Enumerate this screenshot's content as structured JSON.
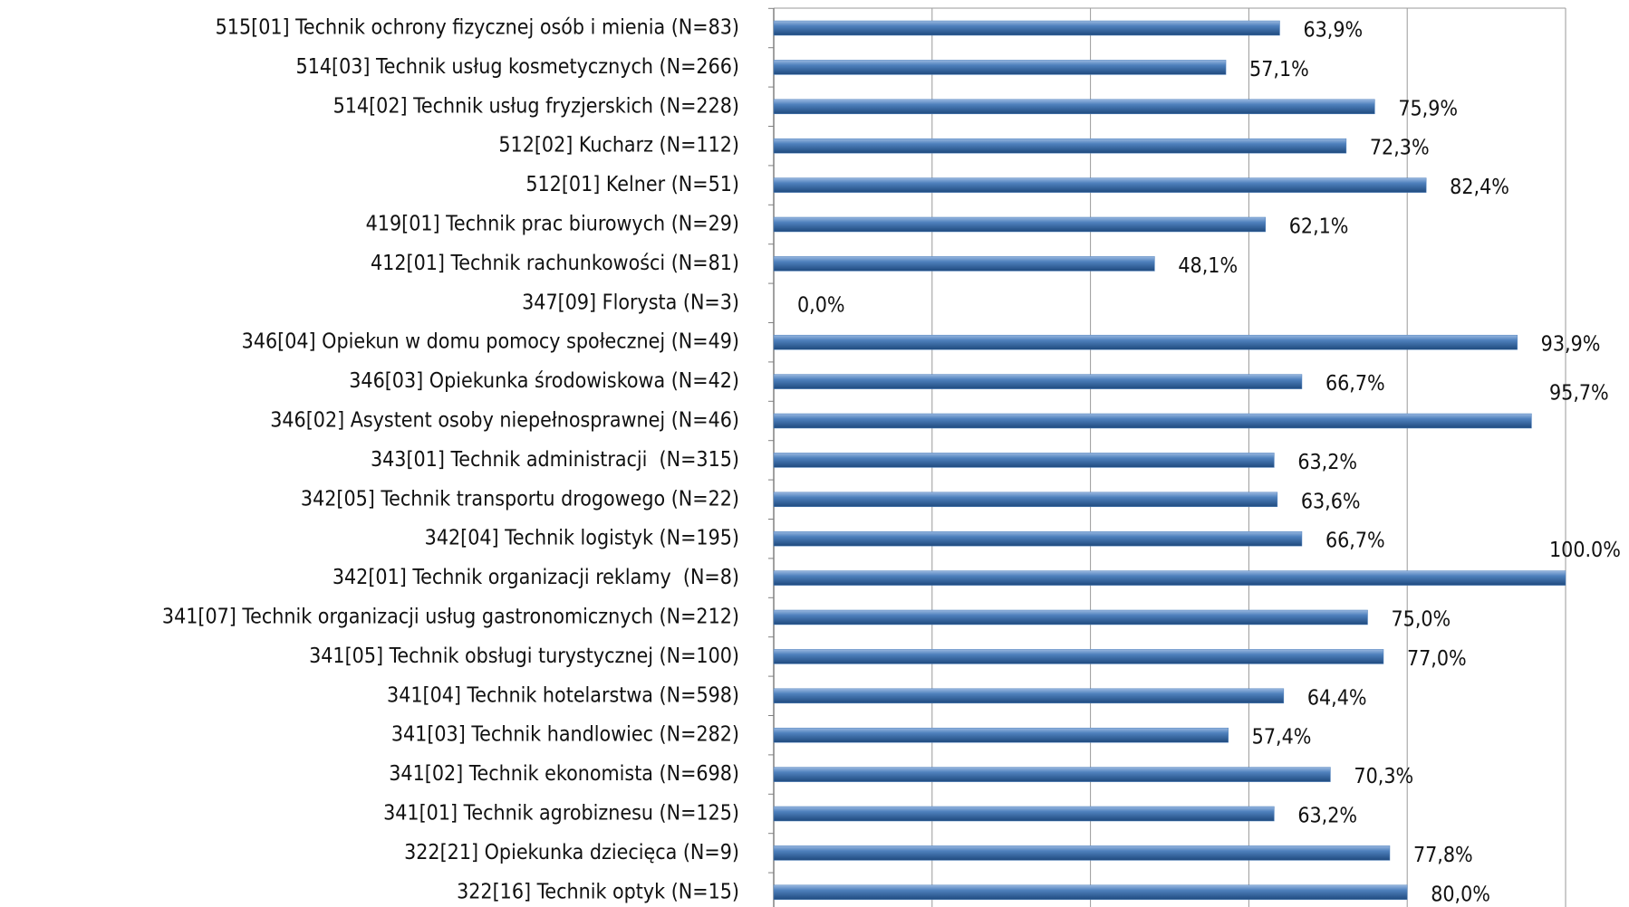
{
  "chart_data": {
    "type": "hbar",
    "categories": [
      "515[01] Technik ochrony fizycznej osób i mienia (N=83)",
      "514[03] Technik usług kosmetycznych (N=266)",
      "514[02] Technik usług fryzjerskich (N=228)",
      "512[02] Kucharz (N=112)",
      "512[01] Kelner (N=51)",
      "419[01] Technik prac biurowych (N=29)",
      "412[01] Technik rachunkowości (N=81)",
      "347[09] Florysta (N=3)",
      "346[04] Opiekun w domu pomocy społecznej (N=49)",
      "346[03] Opiekunka środowiskowa (N=42)",
      "346[02] Asystent osoby niepełnosprawnej (N=46)",
      "343[01] Technik administracji  (N=315)",
      "342[05] Technik transportu drogowego (N=22)",
      "342[04] Technik logistyk (N=195)",
      "342[01] Technik organizacji reklamy  (N=8)",
      "341[07] Technik organizacji usług gastronomicznych (N=212)",
      "341[05] Technik obsługi turystycznej (N=100)",
      "341[04] Technik hotelarstwa (N=598)",
      "341[03] Technik handlowiec (N=282)",
      "341[02] Technik ekonomista (N=698)",
      "341[01] Technik agrobiznesu (N=125)",
      "322[21] Opiekunka dziecięca (N=9)",
      "322[16] Technik optyk (N=15)"
    ],
    "values": [
      63.9,
      57.1,
      75.9,
      72.3,
      82.4,
      62.1,
      48.1,
      0.0,
      93.9,
      66.7,
      95.7,
      63.2,
      63.6,
      66.7,
      100.0,
      75.0,
      77.0,
      64.4,
      57.4,
      70.3,
      63.2,
      77.8,
      80.0
    ],
    "value_labels": [
      "63,9%",
      "57,1%",
      "75,9%",
      "72,3%",
      "82,4%",
      "62,1%",
      "48,1%",
      "0,0%",
      "93,9%",
      "66,7%",
      "95,7%",
      "63,2%",
      "63,6%",
      "66,7%",
      "100.0%",
      "75,0%",
      "77,0%",
      "64,4%",
      "57,4%",
      "70,3%",
      "63,2%",
      "77,8%",
      "80,0%"
    ],
    "color": "#4f81bd",
    "xlim": [
      0,
      100
    ],
    "xticks": [
      0,
      20,
      40,
      60,
      80,
      100
    ],
    "grid": true
  }
}
